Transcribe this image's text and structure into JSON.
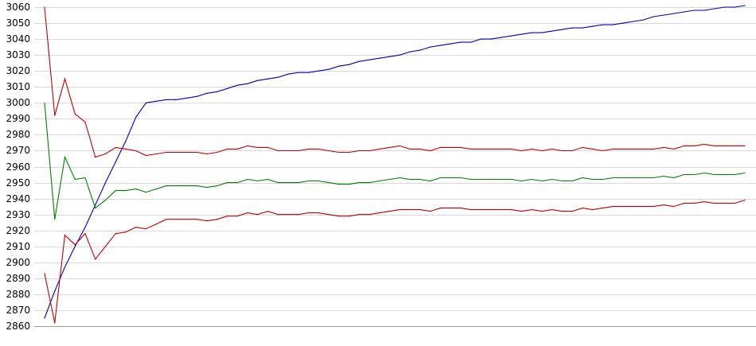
{
  "chart_data": {
    "type": "line",
    "title": "",
    "xlabel": "",
    "ylabel": "",
    "ylim": [
      2860,
      3060
    ],
    "y_ticks": [
      "3060",
      "3050",
      "3040",
      "3030",
      "3020",
      "3010",
      "3000",
      "2990",
      "2980",
      "2970",
      "2960",
      "2950",
      "2940",
      "2930",
      "2920",
      "2910",
      "2900",
      "2890",
      "2880",
      "2870",
      "2860"
    ],
    "grid": true,
    "legend": "none",
    "x": [
      1,
      2,
      3,
      4,
      5,
      6,
      7,
      8,
      9,
      10,
      11,
      12,
      13,
      14,
      15,
      16,
      17,
      18,
      19,
      20,
      21,
      22,
      23,
      24,
      25,
      26,
      27,
      28,
      29,
      30,
      31,
      32,
      33,
      34,
      35,
      36,
      37,
      38,
      39,
      40,
      41,
      42,
      43,
      44,
      45,
      46,
      47,
      48,
      49,
      50,
      51,
      52,
      53,
      54,
      55,
      56,
      57,
      58,
      59,
      60,
      61,
      62,
      63,
      64,
      65,
      66,
      67,
      68,
      69,
      70
    ],
    "series": [
      {
        "color": "#0000c0",
        "values": [
          2865,
          2882,
          2897,
          2910,
          2922,
          2936,
          2950,
          2963,
          2976,
          2991,
          3000,
          3001,
          3002,
          3002,
          3003,
          3004,
          3006,
          3007,
          3009,
          3011,
          3012,
          3014,
          3015,
          3016,
          3018,
          3019,
          3019,
          3020,
          3021,
          3023,
          3024,
          3026,
          3027,
          3028,
          3029,
          3030,
          3032,
          3033,
          3035,
          3036,
          3037,
          3038,
          3038,
          3040,
          3040,
          3041,
          3042,
          3043,
          3044,
          3044,
          3045,
          3046,
          3047,
          3047,
          3048,
          3049,
          3049,
          3050,
          3051,
          3052,
          3054,
          3055,
          3056,
          3057,
          3058,
          3058,
          3059,
          3060,
          3060,
          3061
        ]
      },
      {
        "color": "#c00000",
        "values": [
          3060,
          2992,
          3015,
          2993,
          2988,
          2966,
          2968,
          2972,
          2971,
          2970,
          2967,
          2968,
          2969,
          2969,
          2969,
          2969,
          2968,
          2969,
          2971,
          2971,
          2973,
          2972,
          2972,
          2970,
          2970,
          2970,
          2971,
          2971,
          2970,
          2969,
          2969,
          2970,
          2970,
          2971,
          2972,
          2973,
          2971,
          2971,
          2970,
          2972,
          2972,
          2972,
          2971,
          2971,
          2971,
          2971,
          2971,
          2970,
          2971,
          2970,
          2971,
          2970,
          2970,
          2972,
          2971,
          2970,
          2971,
          2971,
          2971,
          2971,
          2971,
          2972,
          2971,
          2973,
          2973,
          2974,
          2973,
          2973,
          2973,
          2973
        ]
      },
      {
        "color": "#008000",
        "values": [
          3000,
          2927,
          2966,
          2952,
          2953,
          2934,
          2939,
          2945,
          2945,
          2946,
          2944,
          2946,
          2948,
          2948,
          2948,
          2948,
          2947,
          2948,
          2950,
          2950,
          2952,
          2951,
          2952,
          2950,
          2950,
          2950,
          2951,
          2951,
          2950,
          2949,
          2949,
          2950,
          2950,
          2951,
          2952,
          2953,
          2952,
          2952,
          2951,
          2953,
          2953,
          2953,
          2952,
          2952,
          2952,
          2952,
          2952,
          2951,
          2952,
          2951,
          2952,
          2951,
          2951,
          2953,
          2952,
          2952,
          2953,
          2953,
          2953,
          2953,
          2953,
          2954,
          2953,
          2955,
          2955,
          2956,
          2955,
          2955,
          2955,
          2956
        ]
      },
      {
        "color": "#c00000",
        "values": [
          2893,
          2862,
          2917,
          2911,
          2918,
          2902,
          2910,
          2918,
          2919,
          2922,
          2921,
          2924,
          2927,
          2927,
          2927,
          2927,
          2926,
          2927,
          2929,
          2929,
          2931,
          2930,
          2932,
          2930,
          2930,
          2930,
          2931,
          2931,
          2930,
          2929,
          2929,
          2930,
          2930,
          2931,
          2932,
          2933,
          2933,
          2933,
          2932,
          2934,
          2934,
          2934,
          2933,
          2933,
          2933,
          2933,
          2933,
          2932,
          2933,
          2932,
          2933,
          2932,
          2932,
          2934,
          2933,
          2934,
          2935,
          2935,
          2935,
          2935,
          2935,
          2936,
          2935,
          2937,
          2937,
          2938,
          2937,
          2937,
          2937,
          2939
        ]
      }
    ]
  }
}
